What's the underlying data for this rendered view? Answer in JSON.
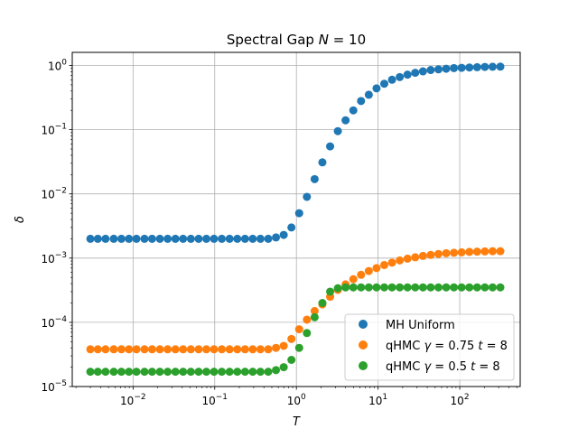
{
  "chart_data": {
    "type": "scatter",
    "title": "Spectral Gap  N =  10",
    "title_parts": {
      "prefix": "Spectral Gap  ",
      "var": "N",
      "suffix": " =  10"
    },
    "xlabel": "T",
    "ylabel": "δ",
    "x_scale": "log",
    "y_scale": "log",
    "xlim": [
      0.0018,
      550
    ],
    "ylim": [
      1e-05,
      1.6
    ],
    "grid": true,
    "legend_position": "lower-right",
    "x_ticks": [
      {
        "value": 0.01,
        "base": "10",
        "exp": "−2"
      },
      {
        "value": 0.1,
        "base": "10",
        "exp": "−1"
      },
      {
        "value": 1,
        "base": "10",
        "exp": "0"
      },
      {
        "value": 10,
        "base": "10",
        "exp": "1"
      },
      {
        "value": 100,
        "base": "10",
        "exp": "2"
      }
    ],
    "y_ticks": [
      {
        "value": 1e-05,
        "base": "10",
        "exp": "−5"
      },
      {
        "value": 0.0001,
        "base": "10",
        "exp": "−4"
      },
      {
        "value": 0.001,
        "base": "10",
        "exp": "−3"
      },
      {
        "value": 0.01,
        "base": "10",
        "exp": "−2"
      },
      {
        "value": 0.1,
        "base": "10",
        "exp": "−1"
      },
      {
        "value": 1,
        "base": "10",
        "exp": "0"
      }
    ],
    "x": [
      0.003,
      0.0037,
      0.0046,
      0.0058,
      0.0072,
      0.0089,
      0.011,
      0.0138,
      0.0171,
      0.0213,
      0.0265,
      0.033,
      0.041,
      0.051,
      0.0635,
      0.079,
      0.098,
      0.122,
      0.152,
      0.189,
      0.235,
      0.292,
      0.363,
      0.452,
      0.562,
      0.699,
      0.869,
      1.081,
      1.344,
      1.672,
      2.08,
      2.587,
      3.217,
      4.002,
      4.977,
      6.191,
      7.7,
      9.577,
      11.91,
      14.82,
      18.43,
      22.92,
      28.51,
      35.46,
      44.1,
      54.85,
      68.22,
      84.86,
      105.5,
      131.3,
      163.3,
      203.1,
      252.6,
      314.2
    ],
    "series": [
      {
        "name": "MH Uniform",
        "color": "#1f77b4",
        "values": [
          0.002,
          0.002,
          0.002,
          0.002,
          0.002,
          0.002,
          0.002,
          0.002,
          0.002,
          0.002,
          0.002,
          0.002,
          0.002,
          0.002,
          0.002,
          0.002,
          0.002,
          0.002,
          0.002,
          0.002,
          0.002,
          0.002,
          0.002,
          0.002,
          0.0021,
          0.0023,
          0.003,
          0.005,
          0.009,
          0.017,
          0.031,
          0.055,
          0.095,
          0.14,
          0.2,
          0.28,
          0.35,
          0.44,
          0.52,
          0.6,
          0.66,
          0.72,
          0.77,
          0.81,
          0.85,
          0.87,
          0.89,
          0.91,
          0.92,
          0.93,
          0.94,
          0.95,
          0.955,
          0.96
        ]
      },
      {
        "name_parts": {
          "prefix": "qHMC ",
          "g": "γ",
          "gval": " = 0.75 ",
          "t": "t",
          "tval": " = 8"
        },
        "color": "#ff7f0e",
        "values": [
          3.8e-05,
          3.8e-05,
          3.8e-05,
          3.8e-05,
          3.8e-05,
          3.8e-05,
          3.8e-05,
          3.8e-05,
          3.8e-05,
          3.8e-05,
          3.8e-05,
          3.8e-05,
          3.8e-05,
          3.8e-05,
          3.8e-05,
          3.8e-05,
          3.8e-05,
          3.8e-05,
          3.8e-05,
          3.8e-05,
          3.8e-05,
          3.8e-05,
          3.8e-05,
          3.8e-05,
          4e-05,
          4.3e-05,
          5.5e-05,
          7.8e-05,
          0.00011,
          0.00015,
          0.00019,
          0.00025,
          0.00032,
          0.00039,
          0.00047,
          0.00055,
          0.00063,
          0.0007,
          0.00078,
          0.00085,
          0.00092,
          0.00098,
          0.00103,
          0.00108,
          0.00112,
          0.00116,
          0.00119,
          0.00121,
          0.00123,
          0.00125,
          0.00126,
          0.00127,
          0.00128,
          0.00128
        ]
      },
      {
        "name_parts": {
          "prefix": "qHMC ",
          "g": "γ",
          "gval": " = 0.5 ",
          "t": "t",
          "tval": " = 8"
        },
        "color": "#2ca02c",
        "values": [
          1.7e-05,
          1.7e-05,
          1.7e-05,
          1.7e-05,
          1.7e-05,
          1.7e-05,
          1.7e-05,
          1.7e-05,
          1.7e-05,
          1.7e-05,
          1.7e-05,
          1.7e-05,
          1.7e-05,
          1.7e-05,
          1.7e-05,
          1.7e-05,
          1.7e-05,
          1.7e-05,
          1.7e-05,
          1.7e-05,
          1.7e-05,
          1.7e-05,
          1.7e-05,
          1.7e-05,
          1.8e-05,
          2e-05,
          2.6e-05,
          4e-05,
          6.8e-05,
          0.00012,
          0.0002,
          0.0003,
          0.00034,
          0.00035,
          0.00035,
          0.00035,
          0.00035,
          0.00035,
          0.00035,
          0.00035,
          0.00035,
          0.00035,
          0.00035,
          0.00035,
          0.00035,
          0.00035,
          0.00035,
          0.00035,
          0.00035,
          0.00035,
          0.00035,
          0.00035,
          0.00035,
          0.00035
        ]
      }
    ]
  }
}
